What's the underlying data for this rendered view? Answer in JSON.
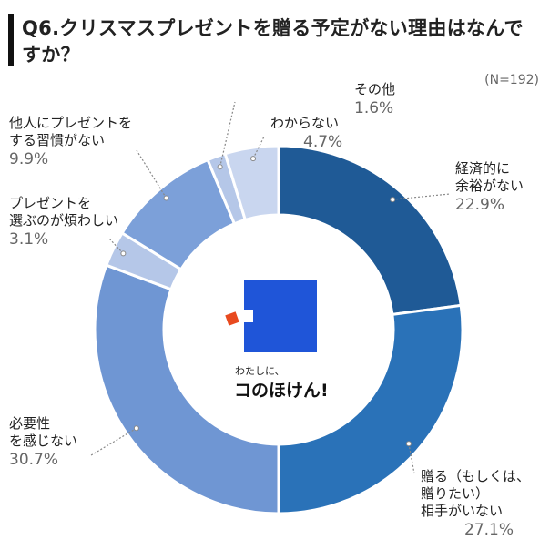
{
  "title": "Q6.クリスマスプレゼントを贈る予定がない理由はなんですか？",
  "sample_size": "(N=192)",
  "brand": {
    "tagline": "わたしに、",
    "name": "コのほけん!"
  },
  "chart_data": {
    "type": "pie",
    "categories": [
      "経済的に余裕がない",
      "贈る（もしくは、贈りたい）相手がいない",
      "必要性を感じない",
      "プレゼントを選ぶのが煩わしい",
      "他人にプレゼントをする習慣がない",
      "その他",
      "わからない"
    ],
    "values": [
      22.9,
      27.1,
      30.7,
      3.1,
      9.9,
      1.6,
      4.7
    ],
    "labels": [
      [
        "経済的に",
        "余裕がない",
        "22.9%"
      ],
      [
        "贈る（もしくは、",
        "贈りたい）",
        "相手がいない",
        "27.1%"
      ],
      [
        "必要性",
        "を感じない",
        "30.7%"
      ],
      [
        "プレゼントを",
        "選ぶのが煩わしい",
        "3.1%"
      ],
      [
        "他人にプレゼントを",
        "する習慣がない",
        "9.9%"
      ],
      [
        "その他",
        "1.6%"
      ],
      [
        "わからない",
        "4.7%"
      ]
    ],
    "colors": [
      "#1f5a96",
      "#2a72b8",
      "#6f96d3",
      "#b5c7e8",
      "#7ca0d9",
      "#b5c7e8",
      "#c9d6ef"
    ]
  }
}
